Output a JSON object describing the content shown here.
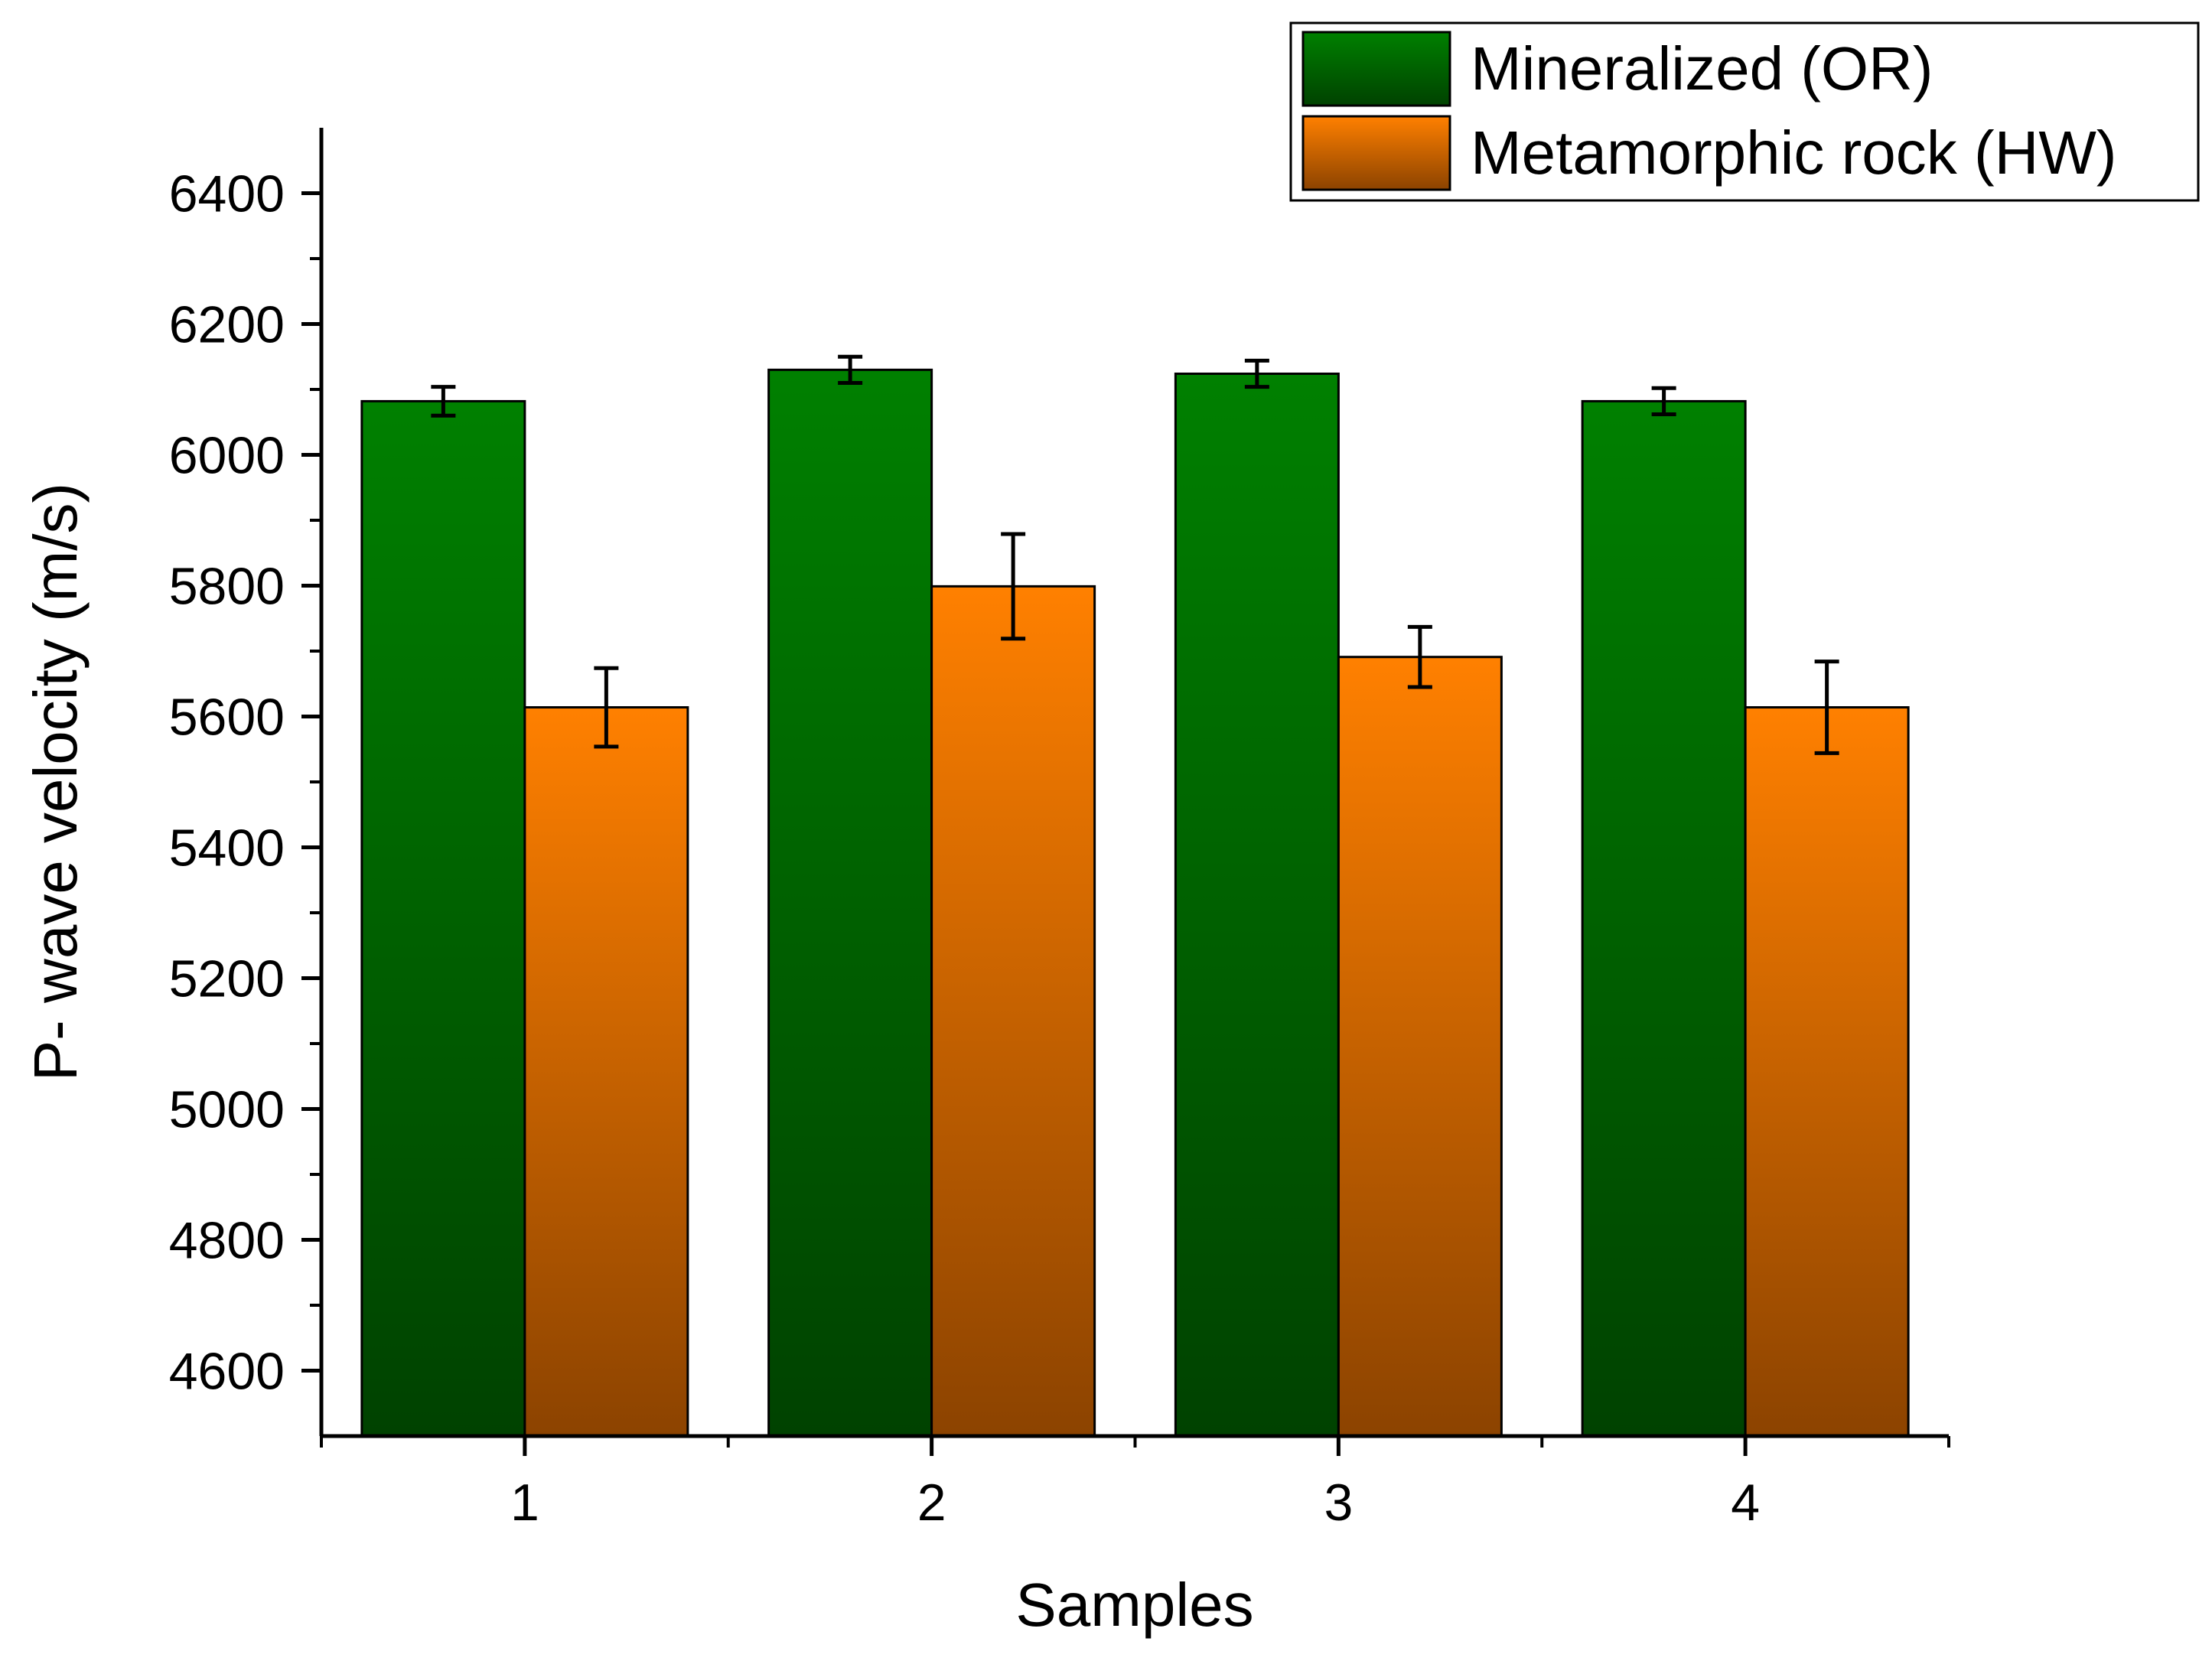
{
  "chart_data": {
    "type": "bar",
    "title": "",
    "xlabel": "Samples",
    "ylabel": "P- wave velocity (m/s)",
    "categories": [
      "1",
      "2",
      "3",
      "4"
    ],
    "ylim": [
      4500,
      6500
    ],
    "yticks": [
      4600,
      4800,
      5000,
      5200,
      5400,
      5600,
      5800,
      6000,
      6200,
      6400
    ],
    "grid": false,
    "legend_position": "top-right",
    "series": [
      {
        "name": "Mineralized (OR)",
        "values": [
          6082,
          6130,
          6124,
          6082
        ],
        "errors": [
          22,
          20,
          20,
          20
        ],
        "color_top": "#008000",
        "color_bottom": "#004200"
      },
      {
        "name": "Metamorphic rock (HW)",
        "values": [
          5614,
          5799,
          5691,
          5614
        ],
        "errors": [
          60,
          80,
          46,
          70
        ],
        "color_top": "#ff8000",
        "color_bottom": "#8c4300"
      }
    ]
  }
}
